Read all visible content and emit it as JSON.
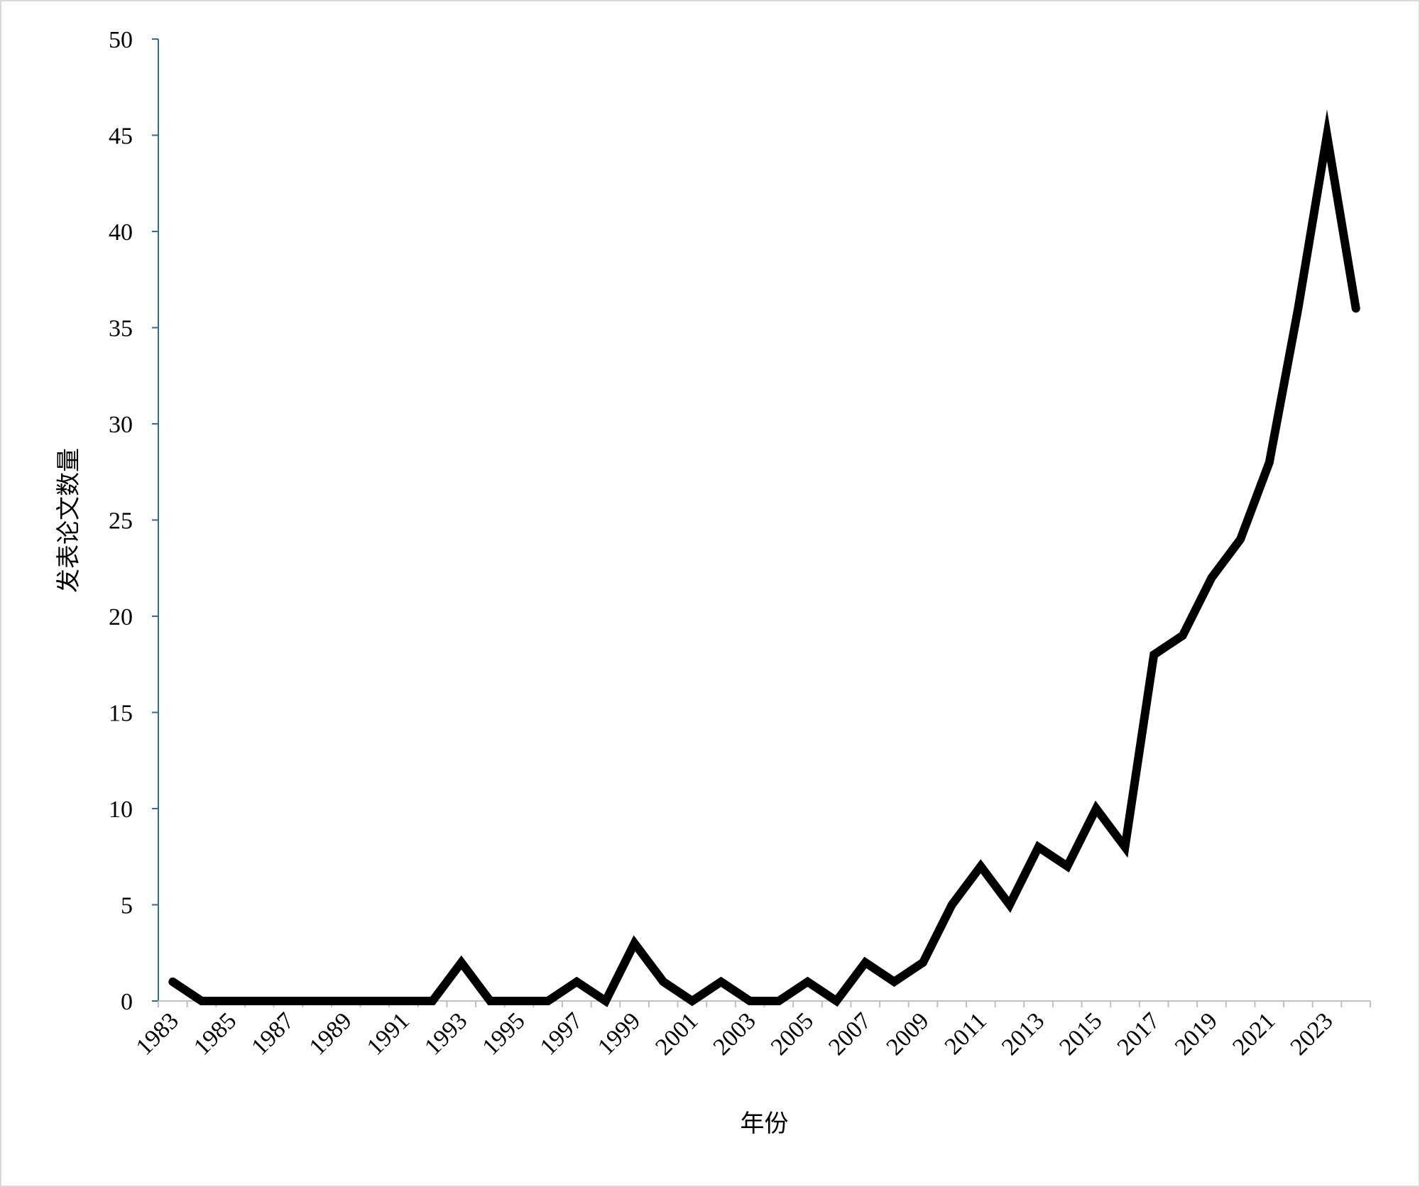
{
  "chart_data": {
    "type": "line",
    "title": "",
    "xlabel": "年份",
    "ylabel": "发表论文数量",
    "x": [
      1983,
      1984,
      1985,
      1986,
      1987,
      1988,
      1989,
      1990,
      1991,
      1992,
      1993,
      1994,
      1995,
      1996,
      1997,
      1998,
      1999,
      2000,
      2001,
      2002,
      2003,
      2004,
      2005,
      2006,
      2007,
      2008,
      2009,
      2010,
      2011,
      2012,
      2013,
      2014,
      2015,
      2016,
      2017,
      2018,
      2019,
      2020,
      2021,
      2022,
      2023,
      2024
    ],
    "series": [
      {
        "values": [
          1,
          0,
          0,
          0,
          0,
          0,
          0,
          0,
          0,
          0,
          2,
          0,
          0,
          0,
          1,
          0,
          3,
          1,
          0,
          1,
          0,
          0,
          1,
          0,
          2,
          1,
          2,
          5,
          7,
          5,
          8,
          7,
          10,
          8,
          18,
          19,
          22,
          24,
          28,
          36,
          45,
          36
        ]
      }
    ],
    "x_tick_labels": [
      "1983",
      "1985",
      "1987",
      "1989",
      "1991",
      "1993",
      "1995",
      "1997",
      "1999",
      "2001",
      "2003",
      "2005",
      "2007",
      "2009",
      "2011",
      "2013",
      "2015",
      "2017",
      "2019",
      "2021",
      "2023"
    ],
    "y_tick_labels": [
      "0",
      "5",
      "10",
      "15",
      "20",
      "25",
      "30",
      "35",
      "40",
      "45",
      "50"
    ],
    "ylim": [
      0,
      50
    ],
    "grid": false,
    "legend": "none",
    "colors": {
      "line": "#000000",
      "y_axis": "#2e6e8e",
      "x_axis": "#c0c0c0",
      "frame": "#d9d9d9"
    }
  }
}
